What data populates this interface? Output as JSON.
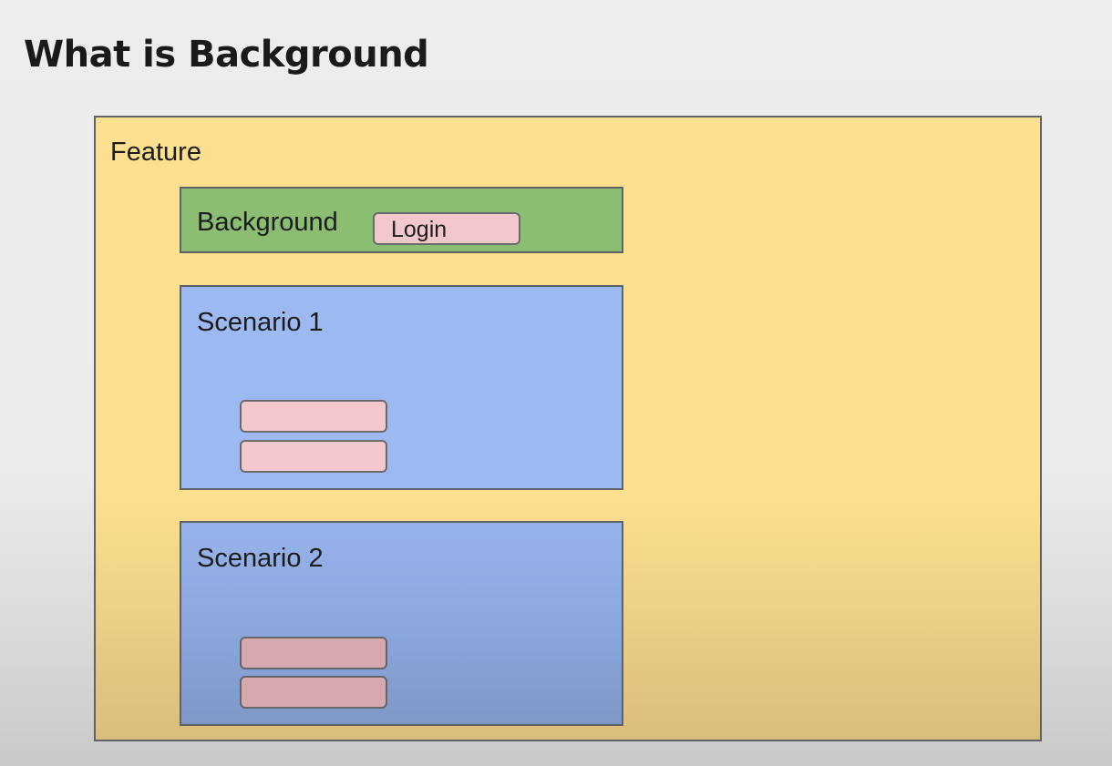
{
  "slide": {
    "title": "What is Background"
  },
  "feature": {
    "label": "Feature",
    "background": {
      "label": "Background",
      "steps": [
        "Login"
      ]
    },
    "scenarios": [
      {
        "label": "Scenario 1",
        "step_count": 2
      },
      {
        "label": "Scenario 2",
        "step_count": 2
      }
    ]
  },
  "colors": {
    "feature": "#fde08f",
    "background": "#8bbd72",
    "scenario": "#9cbaf1",
    "step": "#f2c8cc",
    "border": "#5f6368"
  }
}
